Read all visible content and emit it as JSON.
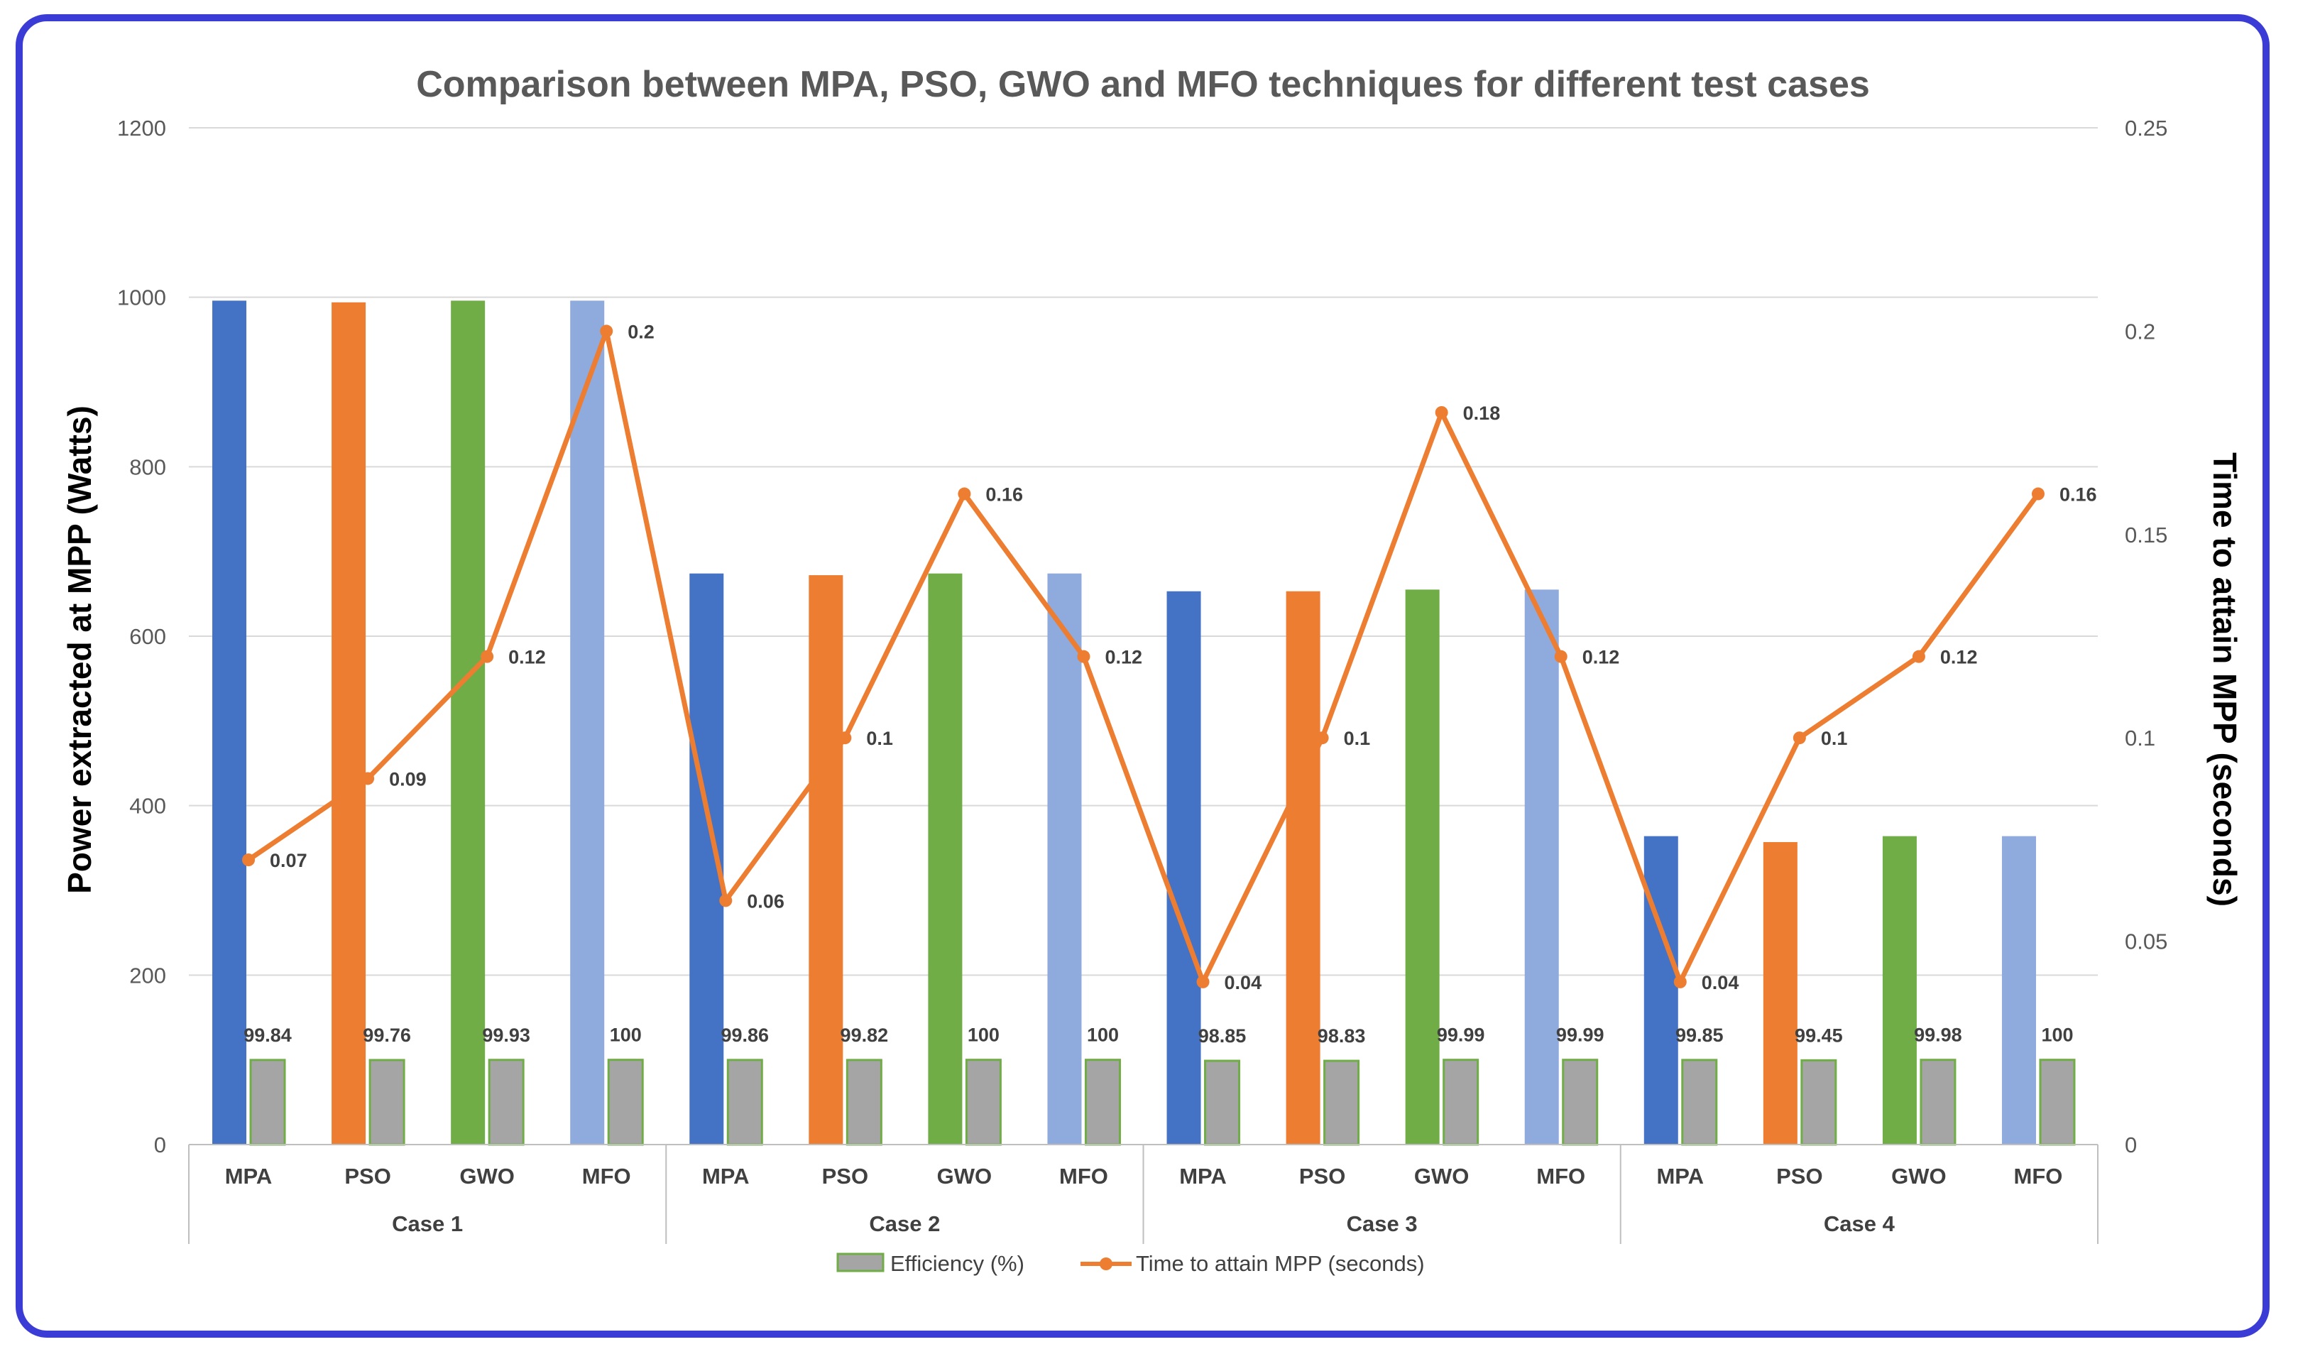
{
  "chart_data": {
    "type": "bar",
    "title": "Comparison between MPA, PSO, GWO and MFO techniques for different test cases",
    "ylabel": "Power extracted at MPP (Watts)",
    "y2label": "Time to attain MPP (seconds)",
    "ylim": [
      0,
      1200
    ],
    "yticks": [
      "0",
      "200",
      "400",
      "600",
      "800",
      "1000",
      "1200"
    ],
    "y2lim": [
      0,
      0.25
    ],
    "y2ticks": [
      "0",
      "0.05",
      "0.1",
      "0.15",
      "0.2",
      "0.25"
    ],
    "groups": [
      "Case 1",
      "Case 2",
      "Case 3",
      "Case 4"
    ],
    "techniques": [
      "MPA",
      "PSO",
      "GWO",
      "MFO"
    ],
    "technique_colors": [
      "#4472c4",
      "#ed7d31",
      "#70ad47",
      "#8faadc"
    ],
    "categories": [
      "MPA",
      "PSO",
      "GWO",
      "MFO",
      "MPA",
      "PSO",
      "GWO",
      "MFO",
      "MPA",
      "PSO",
      "GWO",
      "MFO",
      "MPA",
      "PSO",
      "GWO",
      "MFO"
    ],
    "power_values": [
      996,
      994,
      996,
      996,
      674,
      672,
      674,
      674,
      653,
      653,
      655,
      655,
      364,
      357,
      364,
      364
    ],
    "series": [
      {
        "name": "Efficiency (%)",
        "type": "bar",
        "axis": "left",
        "color": "#a5a5a5",
        "edge": "#70ad47",
        "values": [
          99.84,
          99.76,
          99.93,
          100,
          99.86,
          99.82,
          100,
          100,
          98.85,
          98.83,
          99.99,
          99.99,
          99.85,
          99.45,
          99.98,
          100
        ],
        "labels": [
          "99.84",
          "99.76",
          "99.93",
          "100",
          "99.86",
          "99.82",
          "100",
          "100",
          "98.85",
          "98.83",
          "99.99",
          "99.99",
          "99.85",
          "99.45",
          "99.98",
          "100"
        ]
      },
      {
        "name": "Time to attain MPP (seconds)",
        "type": "line",
        "axis": "right",
        "color": "#ed7d31",
        "values": [
          0.07,
          0.09,
          0.12,
          0.2,
          0.06,
          0.1,
          0.16,
          0.12,
          0.04,
          0.1,
          0.18,
          0.12,
          0.04,
          0.1,
          0.12,
          0.16
        ],
        "labels": [
          "0.07",
          "0.09",
          "0.12",
          "0.2",
          "0.06",
          "0.1",
          "0.16",
          "0.12",
          "0.04",
          "0.1",
          "0.18",
          "0.12",
          "0.04",
          "0.1",
          "0.12",
          "0.16"
        ]
      }
    ],
    "legend": [
      "Efficiency (%)",
      "Time to attain MPP (seconds)"
    ],
    "legend_position": "bottom",
    "grid": true
  }
}
